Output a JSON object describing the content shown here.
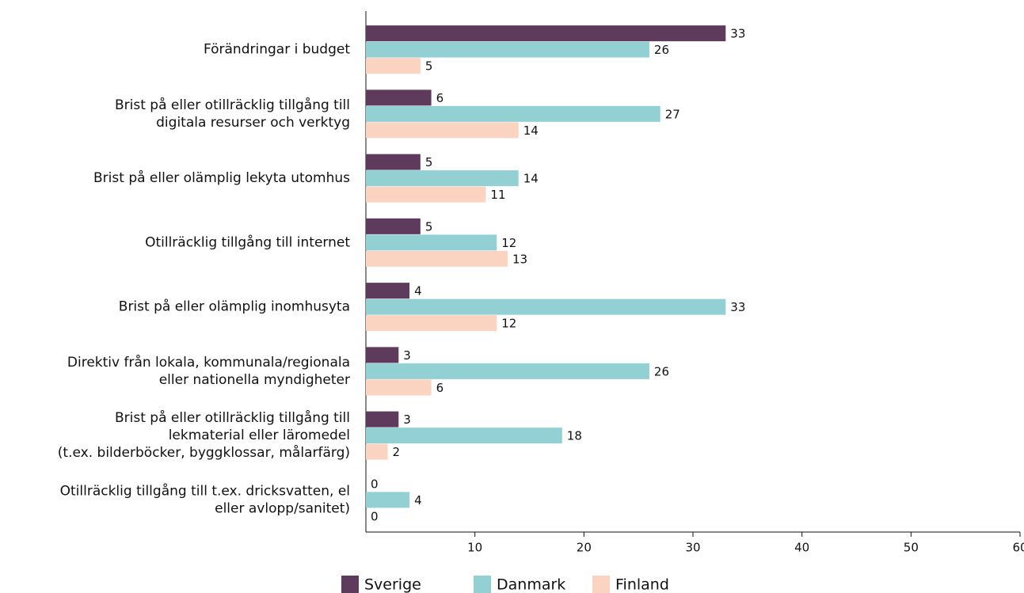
{
  "chart_data": {
    "type": "bar",
    "orientation": "horizontal",
    "categories": [
      [
        "Förändringar i budget"
      ],
      [
        "Brist på eller otillräcklig tillgång till",
        "digitala resurser och verktyg"
      ],
      [
        "Brist på eller olämplig lekyta utomhus"
      ],
      [
        "Otillräcklig tillgång till internet"
      ],
      [
        "Brist på eller olämplig inomhusyta"
      ],
      [
        "Direktiv från lokala, kommunala/regionala",
        "eller nationella myndigheter"
      ],
      [
        "Brist på eller otillräcklig tillgång till",
        "lekmaterial eller läromedel",
        "(t.ex. bilderböcker, byggklossar, målarfärg)"
      ],
      [
        "Otillräcklig tillgång till t.ex. dricksvatten, el",
        "eller avlopp/sanitet)"
      ]
    ],
    "series": [
      {
        "name": "Sverige",
        "color": "#5e3a5c",
        "values": [
          33,
          6,
          5,
          5,
          4,
          3,
          3,
          0
        ]
      },
      {
        "name": "Danmark",
        "color": "#92d0d4",
        "values": [
          26,
          27,
          14,
          12,
          33,
          26,
          18,
          4
        ]
      },
      {
        "name": "Finland",
        "color": "#fbd3c1",
        "values": [
          5,
          14,
          11,
          13,
          12,
          6,
          2,
          0
        ]
      }
    ],
    "xlim": [
      0,
      60
    ],
    "xticks": [
      10,
      20,
      30,
      40,
      50,
      60
    ],
    "legend": "bottom"
  }
}
